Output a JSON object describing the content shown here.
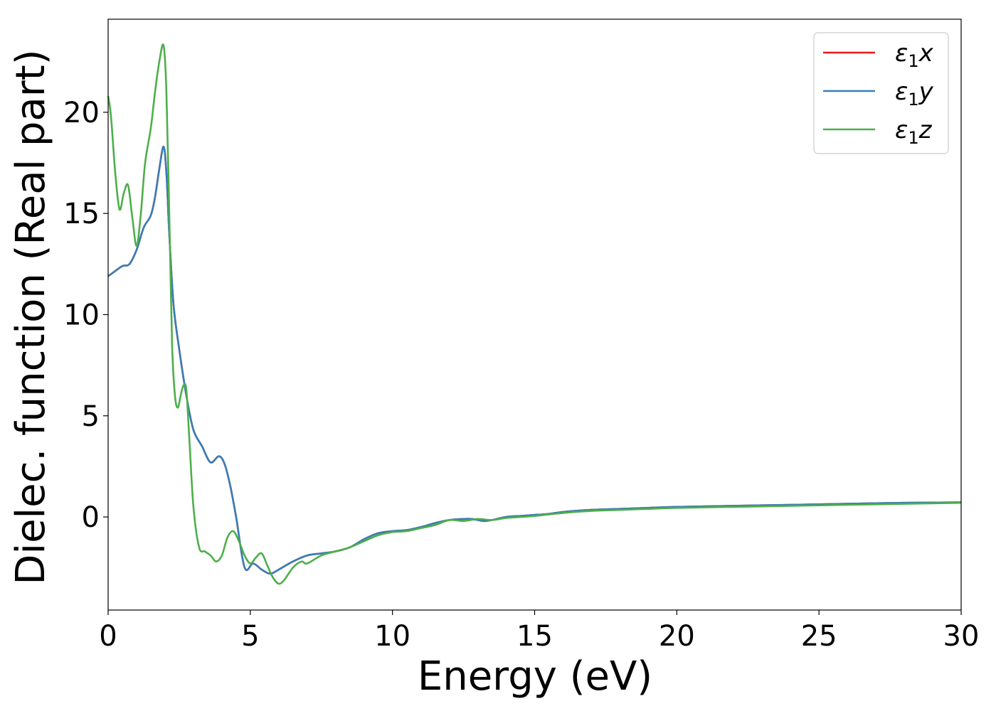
{
  "chart_data": {
    "type": "line",
    "title": "",
    "xlabel": "Energy (eV)",
    "ylabel": "Dielec. function (Real part)",
    "xlim": [
      0,
      30
    ],
    "ylim": [
      -4.6,
      24.6
    ],
    "xticks": [
      0,
      5,
      10,
      15,
      20,
      25,
      30
    ],
    "yticks": [
      0,
      5,
      10,
      15,
      20
    ],
    "xtick_labels": [
      "0",
      "5",
      "10",
      "15",
      "20",
      "25",
      "30"
    ],
    "ytick_labels": [
      "0",
      "5",
      "10",
      "15",
      "20"
    ],
    "grid": false,
    "legend": {
      "position": "top-right",
      "entries": [
        {
          "main": "ε",
          "sub": "1",
          "suffix": "x"
        },
        {
          "main": "ε",
          "sub": "1",
          "suffix": "y"
        },
        {
          "main": "ε",
          "sub": "1",
          "suffix": "z"
        }
      ]
    },
    "series": [
      {
        "name": "ε1x",
        "color": "#e41a1c",
        "x": [
          0,
          0.2,
          0.5,
          0.75,
          1.0,
          1.25,
          1.5,
          1.65,
          1.8,
          1.95,
          2.05,
          2.15,
          2.3,
          2.5,
          2.75,
          3.0,
          3.3,
          3.6,
          3.9,
          4.1,
          4.3,
          4.5,
          4.8,
          5.1,
          5.4,
          5.7,
          6.0,
          6.5,
          7.0,
          7.5,
          8.0,
          8.5,
          9.0,
          9.5,
          10.0,
          10.5,
          11.0,
          11.5,
          12.0,
          12.5,
          12.8,
          13.2,
          13.5,
          14.0,
          14.5,
          15.0,
          15.5,
          16.0,
          17.0,
          18.0,
          19.0,
          20.0,
          22.0,
          24.0,
          26.0,
          28.0,
          30.0
        ],
        "y": [
          11.9,
          12.1,
          12.4,
          12.5,
          13.2,
          14.3,
          14.9,
          15.8,
          17.2,
          18.3,
          17.0,
          14.0,
          10.5,
          8.3,
          6.0,
          4.3,
          3.5,
          2.7,
          3.0,
          2.6,
          1.5,
          0.0,
          -2.5,
          -2.3,
          -2.6,
          -2.8,
          -2.6,
          -2.2,
          -1.9,
          -1.8,
          -1.7,
          -1.5,
          -1.1,
          -0.8,
          -0.7,
          -0.65,
          -0.5,
          -0.3,
          -0.15,
          -0.1,
          -0.1,
          -0.2,
          -0.15,
          0.0,
          0.05,
          0.1,
          0.15,
          0.25,
          0.35,
          0.4,
          0.45,
          0.5,
          0.55,
          0.6,
          0.65,
          0.7,
          0.72
        ]
      },
      {
        "name": "ε1y",
        "color": "#377eb8",
        "x": [
          0,
          0.2,
          0.5,
          0.75,
          1.0,
          1.25,
          1.5,
          1.65,
          1.8,
          1.95,
          2.05,
          2.15,
          2.3,
          2.5,
          2.75,
          3.0,
          3.3,
          3.6,
          3.9,
          4.1,
          4.3,
          4.5,
          4.8,
          5.1,
          5.4,
          5.7,
          6.0,
          6.5,
          7.0,
          7.5,
          8.0,
          8.5,
          9.0,
          9.5,
          10.0,
          10.5,
          11.0,
          11.5,
          12.0,
          12.5,
          12.8,
          13.2,
          13.5,
          14.0,
          14.5,
          15.0,
          15.5,
          16.0,
          17.0,
          18.0,
          19.0,
          20.0,
          22.0,
          24.0,
          26.0,
          28.0,
          30.0
        ],
        "y": [
          11.9,
          12.1,
          12.4,
          12.5,
          13.2,
          14.3,
          14.9,
          15.8,
          17.2,
          18.3,
          17.0,
          14.0,
          10.5,
          8.3,
          6.0,
          4.3,
          3.5,
          2.7,
          3.0,
          2.6,
          1.5,
          0.0,
          -2.5,
          -2.3,
          -2.6,
          -2.8,
          -2.6,
          -2.2,
          -1.9,
          -1.8,
          -1.7,
          -1.5,
          -1.1,
          -0.8,
          -0.7,
          -0.65,
          -0.5,
          -0.3,
          -0.15,
          -0.1,
          -0.1,
          -0.2,
          -0.15,
          0.0,
          0.05,
          0.1,
          0.15,
          0.25,
          0.35,
          0.4,
          0.45,
          0.5,
          0.55,
          0.6,
          0.65,
          0.7,
          0.72
        ]
      },
      {
        "name": "ε1z",
        "color": "#4daf4a",
        "x": [
          0,
          0.1,
          0.25,
          0.4,
          0.55,
          0.7,
          0.85,
          1.0,
          1.15,
          1.3,
          1.5,
          1.65,
          1.8,
          1.95,
          2.05,
          2.15,
          2.25,
          2.35,
          2.45,
          2.55,
          2.65,
          2.75,
          2.85,
          3.0,
          3.2,
          3.4,
          3.6,
          3.8,
          4.0,
          4.2,
          4.4,
          4.6,
          4.8,
          5.0,
          5.2,
          5.4,
          5.6,
          5.8,
          6.0,
          6.2,
          6.5,
          6.8,
          7.0,
          7.5,
          8.0,
          8.5,
          9.0,
          9.5,
          10.0,
          10.5,
          11.0,
          11.5,
          12.0,
          12.5,
          13.0,
          13.5,
          14.0,
          14.5,
          15.0,
          16.0,
          17.0,
          18.0,
          19.0,
          20.0,
          22.0,
          24.0,
          26.0,
          28.0,
          30.0
        ],
        "y": [
          20.8,
          19.8,
          17.0,
          15.2,
          16.0,
          16.4,
          14.8,
          13.4,
          15.0,
          17.5,
          19.2,
          21.0,
          22.5,
          23.3,
          21.0,
          15.0,
          8.5,
          6.0,
          5.4,
          6.0,
          6.5,
          6.3,
          4.0,
          0.5,
          -1.5,
          -1.7,
          -1.9,
          -2.2,
          -1.9,
          -1.0,
          -0.7,
          -1.2,
          -1.9,
          -2.3,
          -2.0,
          -1.8,
          -2.4,
          -3.0,
          -3.3,
          -3.1,
          -2.5,
          -2.2,
          -2.3,
          -1.9,
          -1.7,
          -1.5,
          -1.2,
          -0.9,
          -0.75,
          -0.7,
          -0.55,
          -0.4,
          -0.15,
          -0.2,
          -0.1,
          -0.15,
          -0.05,
          0.0,
          0.05,
          0.2,
          0.3,
          0.35,
          0.4,
          0.45,
          0.5,
          0.55,
          0.6,
          0.65,
          0.7
        ]
      }
    ]
  }
}
